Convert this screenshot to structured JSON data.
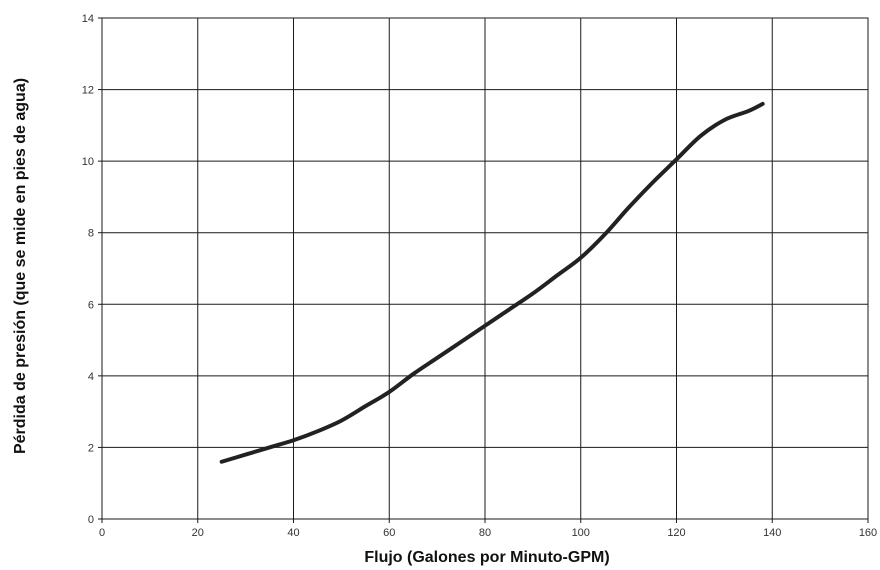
{
  "chart_data": {
    "type": "line",
    "title": "",
    "xlabel": "Flujo (Galones por Minuto-GPM)",
    "ylabel": "Pérdida de presión (que se mide en pies de agua)",
    "xlim": [
      0,
      160
    ],
    "ylim": [
      0,
      14
    ],
    "xticks": [
      0,
      20,
      40,
      60,
      80,
      100,
      120,
      140,
      160
    ],
    "yticks": [
      0,
      2,
      4,
      6,
      8,
      10,
      12,
      14
    ],
    "grid": true,
    "legend": "none",
    "line_color": "#222222",
    "series": [
      {
        "x": [
          25,
          30,
          35,
          40,
          45,
          50,
          55,
          60,
          65,
          70,
          75,
          80,
          85,
          90,
          95,
          100,
          105,
          110,
          115,
          120,
          125,
          130,
          135,
          138
        ],
        "y": [
          1.6,
          1.8,
          2.0,
          2.2,
          2.45,
          2.75,
          3.15,
          3.55,
          4.05,
          4.5,
          4.95,
          5.4,
          5.85,
          6.3,
          6.8,
          7.3,
          7.95,
          8.7,
          9.4,
          10.05,
          10.7,
          11.15,
          11.4,
          11.6
        ]
      }
    ]
  }
}
